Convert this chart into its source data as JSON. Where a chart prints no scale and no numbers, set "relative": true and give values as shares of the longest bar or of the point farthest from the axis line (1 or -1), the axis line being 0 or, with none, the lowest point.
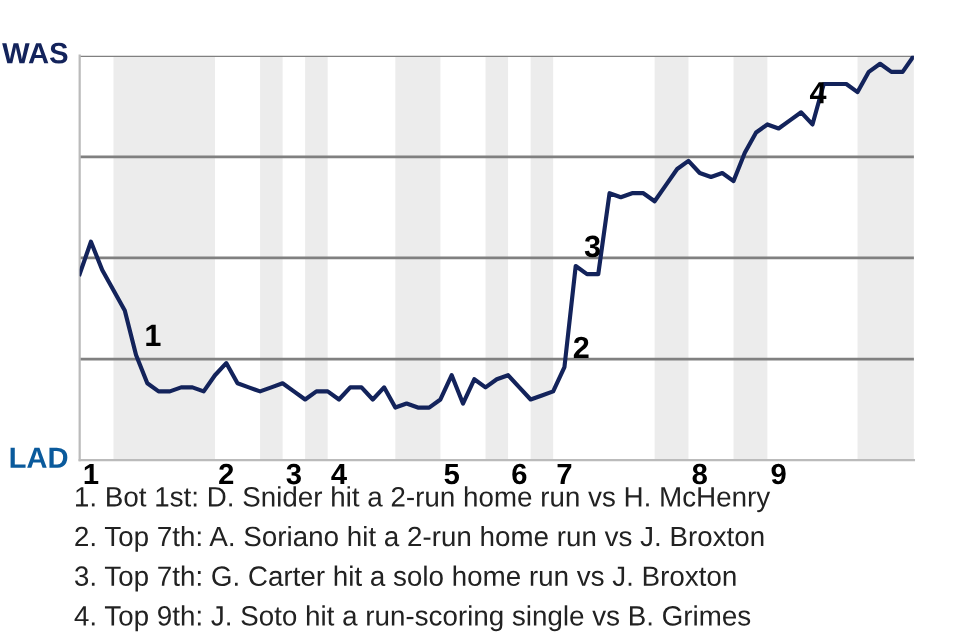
{
  "chart_data": {
    "type": "line",
    "relative": true,
    "categories": [
      null,
      "1",
      null,
      null,
      null,
      null,
      null,
      null,
      null,
      null,
      null,
      null,
      null,
      "2",
      null,
      null,
      null,
      null,
      null,
      "3",
      null,
      null,
      null,
      "4",
      null,
      null,
      null,
      null,
      null,
      null,
      null,
      null,
      null,
      "5",
      null,
      null,
      null,
      null,
      null,
      "6",
      null,
      null,
      null,
      "7",
      null,
      null,
      null,
      null,
      null,
      null,
      null,
      null,
      null,
      null,
      null,
      "8",
      null,
      null,
      null,
      null,
      null,
      null,
      "9",
      null,
      null,
      null,
      null,
      null,
      null,
      null,
      null,
      null,
      null,
      null,
      null
    ],
    "series": [
      {
        "color": "#13235b",
        "values": [
          0.46,
          0.54,
          0.47,
          0.42,
          0.37,
          0.26,
          0.19,
          0.17,
          0.17,
          0.18,
          0.18,
          0.17,
          0.21,
          0.24,
          0.19,
          0.18,
          0.17,
          0.18,
          0.19,
          0.17,
          0.15,
          0.17,
          0.17,
          0.15,
          0.18,
          0.18,
          0.15,
          0.18,
          0.13,
          0.14,
          0.13,
          0.13,
          0.15,
          0.21,
          0.14,
          0.2,
          0.18,
          0.2,
          0.21,
          0.18,
          0.15,
          0.16,
          0.17,
          0.23,
          0.48,
          0.46,
          0.46,
          0.66,
          0.65,
          0.66,
          0.66,
          0.64,
          0.68,
          0.72,
          0.74,
          0.71,
          0.7,
          0.71,
          0.69,
          0.76,
          0.81,
          0.83,
          0.82,
          0.84,
          0.86,
          0.83,
          0.93,
          0.93,
          0.93,
          0.91,
          0.96,
          0.98,
          0.96,
          0.96,
          1
        ]
      }
    ],
    "ref_lines": [
      {
        "axis": "y",
        "value": 0.25,
        "color": "#808080"
      },
      {
        "axis": "y",
        "value": 0.5,
        "color": "#808080"
      },
      {
        "axis": "y",
        "value": 0.75,
        "color": "#808080"
      },
      {
        "axis": "y",
        "value": 1,
        "color": "#808080"
      }
    ],
    "annotations": [
      {
        "text": "1",
        "y": 0.26
      },
      {
        "text": "2",
        "y": 0.23
      },
      {
        "text": "3",
        "y": 0.48
      },
      {
        "text": "4",
        "y": 0.86
      },
      "WAS",
      "LAD",
      "1. Bot 1st: D. Snider hit a 2-run home run vs H. McHenry",
      "2. Top 7th: A. Soriano hit a 2-run home run vs J. Broxton",
      "3. Top 7th: G. Carter hit a solo home run vs J. Broxton",
      "4. Top 9th: J. Soto hit a run-scoring single vs B. Grimes"
    ]
  }
}
